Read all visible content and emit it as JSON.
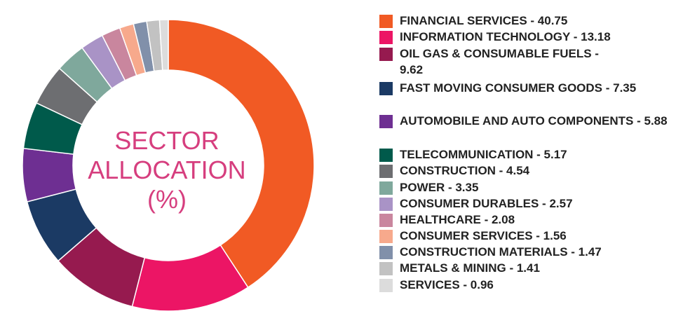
{
  "chart_data": {
    "type": "pie",
    "title": "SECTOR ALLOCATION (%)",
    "title_lines": [
      "SECTOR",
      "ALLOCATION",
      "(%)"
    ],
    "legend_position": "right",
    "slices": [
      {
        "label": "FINANCIAL SERVICES - 40.75",
        "value": 40.75,
        "color": "#f15a24"
      },
      {
        "label": "INFORMATION TECHNOLOGY - 13.18",
        "value": 13.18,
        "color": "#ec1565"
      },
      {
        "label": "OIL GAS & CONSUMABLE FUELS - 9.62",
        "value": 9.62,
        "color": "#961a4f"
      },
      {
        "label": "FAST MOVING CONSUMER GOODS - 7.35",
        "value": 7.35,
        "color": "#1b3a64"
      },
      {
        "label": "AUTOMOBILE AND AUTO COMPONENTS - 5.88",
        "value": 5.88,
        "color": "#6e2f92"
      },
      {
        "label": "TELECOMMUNICATION - 5.17",
        "value": 5.17,
        "color": "#005a4b"
      },
      {
        "label": "CONSTRUCTION - 4.54",
        "value": 4.54,
        "color": "#6d6e71"
      },
      {
        "label": "POWER - 3.35",
        "value": 3.35,
        "color": "#7fa89c"
      },
      {
        "label": "CONSUMER DURABLES - 2.57",
        "value": 2.57,
        "color": "#a993c6"
      },
      {
        "label": "HEALTHCARE - 2.08",
        "value": 2.08,
        "color": "#c9869e"
      },
      {
        "label": "CONSUMER SERVICES - 1.56",
        "value": 1.56,
        "color": "#f7a98c"
      },
      {
        "label": "CONSTRUCTION MATERIALS - 1.47",
        "value": 1.47,
        "color": "#8190aa"
      },
      {
        "label": "METALS & MINING - 1.41",
        "value": 1.41,
        "color": "#c2c2c2"
      },
      {
        "label": "SERVICES - 0.96",
        "value": 0.96,
        "color": "#dcdcdc"
      }
    ]
  }
}
